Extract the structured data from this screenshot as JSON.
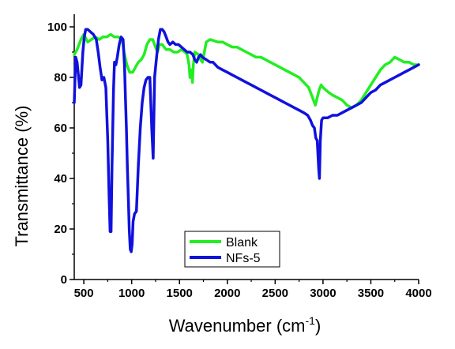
{
  "chart_data": {
    "type": "line",
    "xlabel": "Wavenumber (cm",
    "xlabel_sup": "-1",
    "xlabel_close": ")",
    "ylabel": "Transmittance (%)",
    "xlim": [
      400,
      4000
    ],
    "ylim": [
      0,
      105
    ],
    "x_ticks": [
      500,
      1000,
      1500,
      2000,
      2500,
      3000,
      3500,
      4000
    ],
    "y_ticks": [
      0,
      20,
      40,
      60,
      80,
      100
    ],
    "grid": false,
    "legend_position": "bottom-center",
    "series": [
      {
        "name": "Blank",
        "color": "#22ee22",
        "points": [
          [
            400,
            89
          ],
          [
            430,
            91
          ],
          [
            470,
            95
          ],
          [
            500,
            97
          ],
          [
            540,
            94
          ],
          [
            580,
            95
          ],
          [
            620,
            96
          ],
          [
            660,
            95
          ],
          [
            700,
            96
          ],
          [
            740,
            96
          ],
          [
            780,
            97
          ],
          [
            820,
            96
          ],
          [
            860,
            96
          ],
          [
            900,
            95
          ],
          [
            920,
            90
          ],
          [
            950,
            85
          ],
          [
            980,
            82
          ],
          [
            1010,
            82
          ],
          [
            1040,
            84
          ],
          [
            1070,
            86
          ],
          [
            1100,
            87
          ],
          [
            1130,
            89
          ],
          [
            1160,
            93
          ],
          [
            1190,
            95
          ],
          [
            1220,
            95
          ],
          [
            1250,
            92
          ],
          [
            1270,
            90
          ],
          [
            1290,
            93
          ],
          [
            1320,
            93
          ],
          [
            1360,
            91
          ],
          [
            1400,
            91
          ],
          [
            1440,
            90
          ],
          [
            1480,
            90
          ],
          [
            1520,
            91
          ],
          [
            1560,
            90
          ],
          [
            1580,
            89
          ],
          [
            1600,
            85
          ],
          [
            1610,
            80
          ],
          [
            1625,
            83
          ],
          [
            1635,
            78
          ],
          [
            1645,
            85
          ],
          [
            1660,
            90
          ],
          [
            1700,
            89
          ],
          [
            1720,
            87
          ],
          [
            1740,
            86
          ],
          [
            1780,
            94
          ],
          [
            1820,
            95
          ],
          [
            1900,
            94
          ],
          [
            1950,
            94
          ],
          [
            2000,
            93
          ],
          [
            2050,
            92
          ],
          [
            2100,
            92
          ],
          [
            2150,
            91
          ],
          [
            2200,
            90
          ],
          [
            2250,
            89
          ],
          [
            2300,
            88
          ],
          [
            2350,
            88
          ],
          [
            2400,
            87
          ],
          [
            2450,
            86
          ],
          [
            2500,
            85
          ],
          [
            2550,
            84
          ],
          [
            2600,
            83
          ],
          [
            2650,
            82
          ],
          [
            2700,
            81
          ],
          [
            2750,
            80
          ],
          [
            2800,
            78
          ],
          [
            2850,
            76
          ],
          [
            2880,
            73
          ],
          [
            2900,
            71
          ],
          [
            2920,
            69
          ],
          [
            2940,
            72
          ],
          [
            2960,
            75
          ],
          [
            2980,
            77
          ],
          [
            3000,
            76
          ],
          [
            3030,
            75
          ],
          [
            3060,
            74
          ],
          [
            3100,
            73
          ],
          [
            3150,
            72
          ],
          [
            3200,
            71
          ],
          [
            3250,
            69
          ],
          [
            3300,
            68
          ],
          [
            3350,
            69
          ],
          [
            3400,
            71
          ],
          [
            3450,
            74
          ],
          [
            3500,
            77
          ],
          [
            3550,
            80
          ],
          [
            3600,
            83
          ],
          [
            3650,
            85
          ],
          [
            3700,
            86
          ],
          [
            3750,
            88
          ],
          [
            3800,
            87
          ],
          [
            3850,
            86
          ],
          [
            3900,
            86
          ],
          [
            3950,
            85
          ],
          [
            4000,
            85
          ]
        ]
      },
      {
        "name": "NFs-5",
        "color": "#1111dd",
        "points": [
          [
            400,
            70
          ],
          [
            415,
            88
          ],
          [
            430,
            86
          ],
          [
            445,
            80
          ],
          [
            455,
            76
          ],
          [
            470,
            77
          ],
          [
            490,
            90
          ],
          [
            505,
            96
          ],
          [
            520,
            99
          ],
          [
            540,
            99
          ],
          [
            570,
            98
          ],
          [
            600,
            97
          ],
          [
            630,
            95
          ],
          [
            650,
            90
          ],
          [
            670,
            84
          ],
          [
            690,
            79
          ],
          [
            710,
            80
          ],
          [
            730,
            76
          ],
          [
            750,
            55
          ],
          [
            765,
            32
          ],
          [
            775,
            19
          ],
          [
            785,
            19
          ],
          [
            795,
            45
          ],
          [
            810,
            75
          ],
          [
            820,
            86
          ],
          [
            835,
            85
          ],
          [
            850,
            88
          ],
          [
            870,
            93
          ],
          [
            890,
            96
          ],
          [
            910,
            95
          ],
          [
            925,
            85
          ],
          [
            935,
            72
          ],
          [
            945,
            60
          ],
          [
            955,
            45
          ],
          [
            965,
            33
          ],
          [
            975,
            20
          ],
          [
            985,
            12
          ],
          [
            995,
            11
          ],
          [
            1005,
            14
          ],
          [
            1015,
            23
          ],
          [
            1030,
            26
          ],
          [
            1050,
            27
          ],
          [
            1070,
            45
          ],
          [
            1090,
            60
          ],
          [
            1110,
            70
          ],
          [
            1130,
            76
          ],
          [
            1150,
            79
          ],
          [
            1170,
            80
          ],
          [
            1190,
            80
          ],
          [
            1210,
            60
          ],
          [
            1225,
            48
          ],
          [
            1240,
            80
          ],
          [
            1260,
            88
          ],
          [
            1280,
            95
          ],
          [
            1300,
            99
          ],
          [
            1320,
            99
          ],
          [
            1340,
            98
          ],
          [
            1360,
            96
          ],
          [
            1380,
            94
          ],
          [
            1400,
            93
          ],
          [
            1430,
            94
          ],
          [
            1460,
            93
          ],
          [
            1490,
            93
          ],
          [
            1520,
            92
          ],
          [
            1550,
            91
          ],
          [
            1580,
            90
          ],
          [
            1610,
            90
          ],
          [
            1640,
            89
          ],
          [
            1660,
            87
          ],
          [
            1680,
            86
          ],
          [
            1700,
            88
          ],
          [
            1720,
            89
          ],
          [
            1740,
            88
          ],
          [
            1780,
            87
          ],
          [
            1820,
            86
          ],
          [
            1850,
            86
          ],
          [
            1900,
            84
          ],
          [
            1950,
            83
          ],
          [
            2000,
            82
          ],
          [
            2050,
            81
          ],
          [
            2100,
            80
          ],
          [
            2150,
            79
          ],
          [
            2200,
            78
          ],
          [
            2250,
            77
          ],
          [
            2300,
            76
          ],
          [
            2350,
            75
          ],
          [
            2400,
            74
          ],
          [
            2450,
            73
          ],
          [
            2500,
            72
          ],
          [
            2550,
            71
          ],
          [
            2600,
            70
          ],
          [
            2650,
            69
          ],
          [
            2700,
            68
          ],
          [
            2750,
            67
          ],
          [
            2800,
            66
          ],
          [
            2840,
            65
          ],
          [
            2870,
            63
          ],
          [
            2890,
            61
          ],
          [
            2910,
            60
          ],
          [
            2925,
            56
          ],
          [
            2940,
            55
          ],
          [
            2955,
            44
          ],
          [
            2963,
            40
          ],
          [
            2972,
            55
          ],
          [
            2985,
            63
          ],
          [
            3000,
            64
          ],
          [
            3050,
            64
          ],
          [
            3100,
            65
          ],
          [
            3150,
            65
          ],
          [
            3200,
            66
          ],
          [
            3250,
            67
          ],
          [
            3300,
            68
          ],
          [
            3350,
            69
          ],
          [
            3400,
            70
          ],
          [
            3450,
            72
          ],
          [
            3500,
            74
          ],
          [
            3550,
            75
          ],
          [
            3600,
            77
          ],
          [
            3650,
            78
          ],
          [
            3700,
            79
          ],
          [
            3750,
            80
          ],
          [
            3800,
            81
          ],
          [
            3850,
            82
          ],
          [
            3900,
            83
          ],
          [
            3950,
            84
          ],
          [
            4000,
            85
          ]
        ]
      }
    ]
  }
}
